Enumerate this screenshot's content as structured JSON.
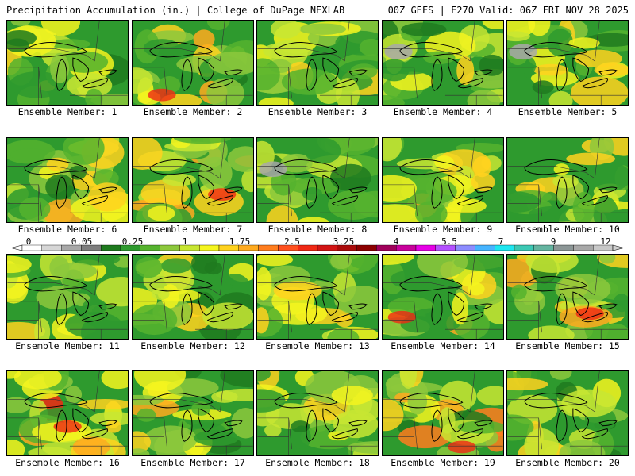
{
  "header": {
    "left": "Precipitation Accumulation (in.) | College of DuPage NEXLAB",
    "right": "00Z GEFS | F270 Valid: 06Z FRI NOV 28 2025"
  },
  "members": [
    {
      "label": "Ensemble Member: 1"
    },
    {
      "label": "Ensemble Member: 2"
    },
    {
      "label": "Ensemble Member: 3"
    },
    {
      "label": "Ensemble Member: 4"
    },
    {
      "label": "Ensemble Member: 5"
    },
    {
      "label": "Ensemble Member: 6"
    },
    {
      "label": "Ensemble Member: 7"
    },
    {
      "label": "Ensemble Member: 8"
    },
    {
      "label": "Ensemble Member: 9"
    },
    {
      "label": "Ensemble Member: 10"
    },
    {
      "label": "Ensemble Member: 11"
    },
    {
      "label": "Ensemble Member: 12"
    },
    {
      "label": "Ensemble Member: 13"
    },
    {
      "label": "Ensemble Member: 14"
    },
    {
      "label": "Ensemble Member: 15"
    },
    {
      "label": "Ensemble Member: 16"
    },
    {
      "label": "Ensemble Member: 17"
    },
    {
      "label": "Ensemble Member: 18"
    },
    {
      "label": "Ensemble Member: 19"
    },
    {
      "label": "Ensemble Member: 20"
    }
  ],
  "colorbar": {
    "labels": [
      "0",
      "0.05",
      "0.25",
      "1",
      "1.75",
      "2.5",
      "3.25",
      "4",
      "5.5",
      "7",
      "9",
      "12"
    ],
    "colors": [
      "#ffffff",
      "#d6d6d6",
      "#a8a8a8",
      "#7d7d7d",
      "#1e7a1e",
      "#2e9a2e",
      "#55b32e",
      "#8cc83c",
      "#c8e632",
      "#f5f51e",
      "#ffd21e",
      "#ffaa1e",
      "#ff7d1e",
      "#ff501e",
      "#f02814",
      "#d21414",
      "#aa0a0a",
      "#8c0000",
      "#a0005a",
      "#c8009b",
      "#e600e6",
      "#b450ff",
      "#8c8cff",
      "#46b4ff",
      "#1ee6f0",
      "#3cc8b4",
      "#64b4a0",
      "#8c9696",
      "#a8a8a8",
      "#c8c8c8"
    ]
  }
}
